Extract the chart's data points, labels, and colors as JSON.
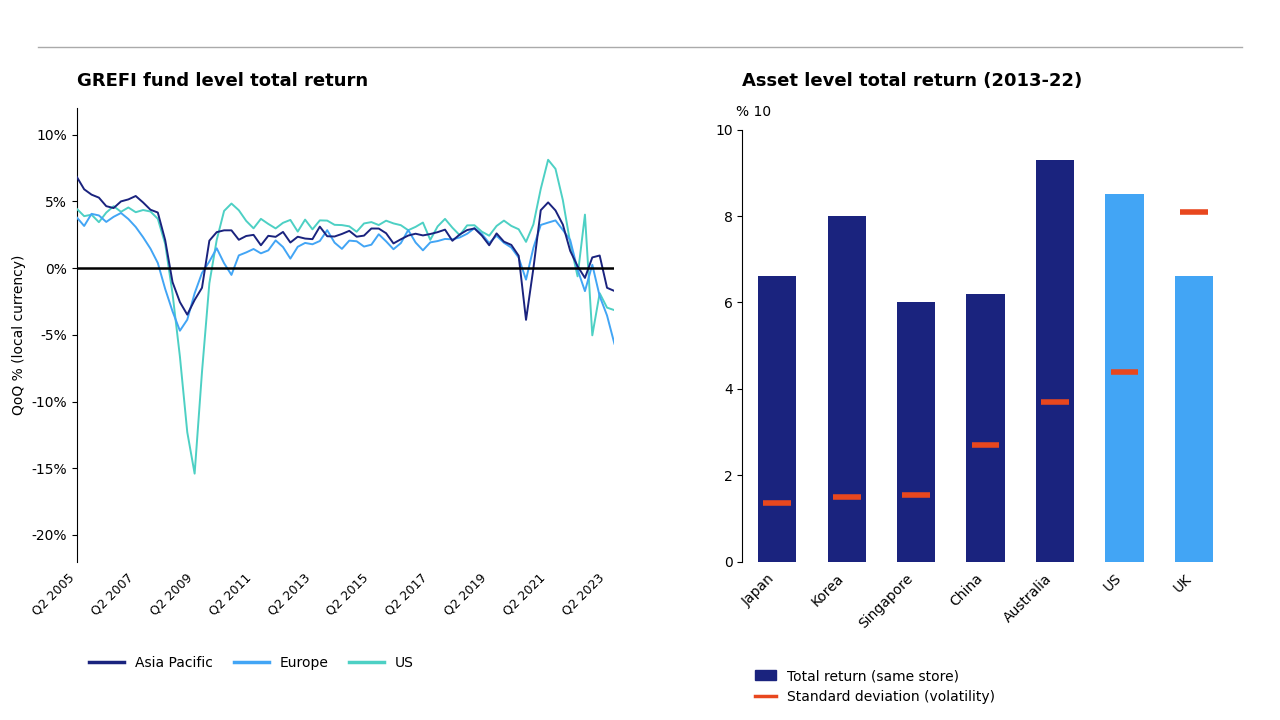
{
  "left_title": "GREFI fund level total return",
  "right_title": "Asset level total return (2013-22)",
  "left_ylabel": "QoQ % (local currency)",
  "right_ylabel_pct": "%",
  "right_ylabel_num": "10",
  "left_yticks": [
    -0.2,
    -0.15,
    -0.1,
    -0.05,
    0.0,
    0.05,
    0.1
  ],
  "right_yticks": [
    0,
    2,
    4,
    6,
    8,
    10
  ],
  "x_tick_labels": [
    "Q2 2005",
    "Q2 2007",
    "Q2 2009",
    "Q2 2011",
    "Q2 2013",
    "Q2 2015",
    "Q2 2017",
    "Q2 2019",
    "Q2 2021",
    "Q2 2023"
  ],
  "apac_color": "#1a237e",
  "europe_color": "#42a5f5",
  "us_color": "#4dd0c4",
  "dark_blue_bar": "#1a237e",
  "light_blue_bar": "#42a5f5",
  "std_dev_color": "#e8471e",
  "bar_categories": [
    "Japan",
    "Korea",
    "Singapore",
    "China",
    "Australia",
    "US",
    "UK"
  ],
  "bar_values": [
    6.6,
    8.0,
    6.0,
    6.2,
    9.3,
    8.5,
    6.6
  ],
  "bar_colors": [
    "#1a237e",
    "#1a237e",
    "#1a237e",
    "#1a237e",
    "#1a237e",
    "#42a5f5",
    "#42a5f5"
  ],
  "std_dev_values": [
    1.35,
    1.5,
    1.55,
    2.7,
    3.7,
    4.4,
    8.1
  ],
  "background_color": "#ffffff",
  "legend_left": [
    {
      "label": "Asia Pacific",
      "color": "#1a237e"
    },
    {
      "label": "Europe",
      "color": "#42a5f5"
    },
    {
      "label": "US",
      "color": "#4dd0c4"
    }
  ],
  "legend_right": [
    {
      "label": "Total return (same store)",
      "color": "#1a237e"
    },
    {
      "label": "Standard deviation (volatility)",
      "color": "#e8471e"
    }
  ],
  "apac": [
    6.5,
    6.0,
    5.5,
    5.2,
    4.8,
    4.5,
    5.0,
    5.5,
    5.2,
    4.8,
    4.5,
    4.2,
    2.0,
    -1.0,
    -2.5,
    -3.2,
    -2.5,
    -1.5,
    2.0,
    3.0,
    2.5,
    2.8,
    2.2,
    2.0,
    2.5,
    2.0,
    2.5,
    2.8,
    2.5,
    2.0,
    2.5,
    2.0,
    2.5,
    3.0,
    2.8,
    2.5,
    2.8,
    2.5,
    2.0,
    2.5,
    2.8,
    3.0,
    2.5,
    2.0,
    2.5,
    2.8,
    2.5,
    2.0,
    2.5,
    2.8,
    2.5,
    2.0,
    2.5,
    2.8,
    3.0,
    2.5,
    2.0,
    2.5,
    2.0,
    1.5,
    1.0,
    -3.5,
    0.0,
    4.0,
    5.0,
    4.5,
    3.5,
    1.5,
    0.2,
    -0.5,
    0.5,
    1.0,
    -1.5,
    -2.0
  ],
  "europe": [
    3.5,
    3.2,
    4.0,
    3.8,
    3.5,
    4.2,
    4.0,
    3.5,
    3.0,
    2.5,
    1.5,
    0.5,
    -1.5,
    -3.5,
    -5.0,
    -4.0,
    -2.0,
    -0.5,
    0.5,
    1.5,
    0.5,
    -0.5,
    0.5,
    1.0,
    1.5,
    1.2,
    1.5,
    2.0,
    1.5,
    1.0,
    1.5,
    2.0,
    1.5,
    2.0,
    2.5,
    2.0,
    1.5,
    2.0,
    1.8,
    1.5,
    2.0,
    2.5,
    2.0,
    1.5,
    2.0,
    2.5,
    2.0,
    1.5,
    1.8,
    2.0,
    2.2,
    2.0,
    2.2,
    2.5,
    2.8,
    2.5,
    2.0,
    2.5,
    2.0,
    1.5,
    1.0,
    -0.5,
    1.5,
    3.5,
    3.8,
    3.5,
    3.0,
    2.0,
    0.0,
    -1.5,
    0.5,
    -2.0,
    -3.5,
    -5.5
  ],
  "us": [
    4.5,
    4.2,
    4.0,
    3.8,
    4.2,
    4.5,
    4.0,
    4.2,
    4.5,
    4.2,
    4.0,
    3.5,
    2.0,
    -2.0,
    -7.0,
    -12.0,
    -15.5,
    -8.0,
    -1.0,
    2.0,
    4.5,
    5.0,
    4.5,
    3.5,
    3.0,
    3.5,
    3.5,
    3.0,
    3.2,
    3.5,
    3.0,
    3.5,
    3.0,
    3.5,
    3.5,
    3.0,
    3.2,
    3.5,
    3.0,
    3.2,
    3.5,
    3.0,
    3.5,
    3.5,
    3.0,
    3.0,
    3.5,
    3.0,
    2.5,
    3.0,
    3.5,
    3.0,
    2.8,
    3.0,
    3.5,
    3.0,
    2.5,
    3.0,
    3.5,
    3.0,
    3.0,
    2.0,
    3.5,
    6.0,
    8.0,
    7.5,
    5.0,
    2.0,
    -0.5,
    4.0,
    -5.0,
    -2.0,
    -3.0,
    -3.5
  ]
}
